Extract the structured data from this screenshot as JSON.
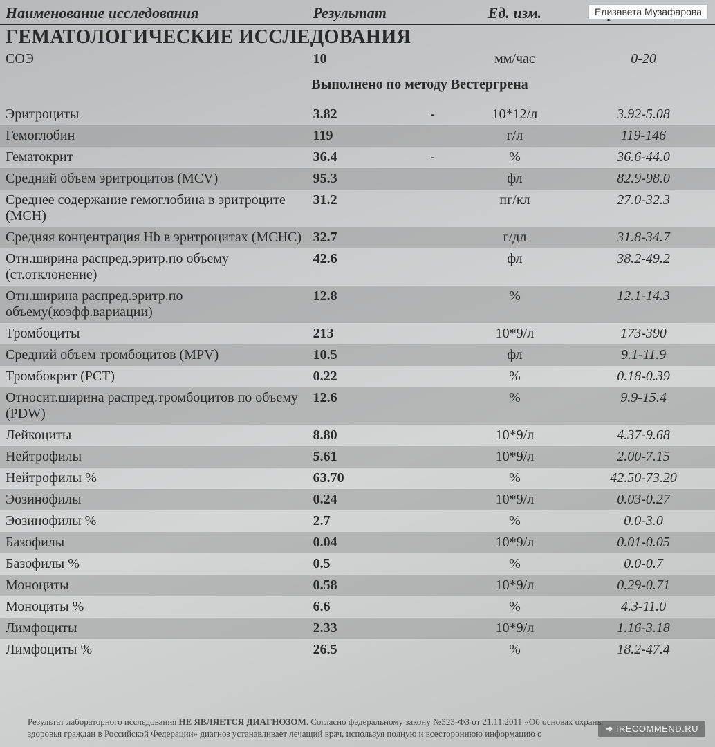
{
  "attribution": "Елизавета Музафарова",
  "watermark": "➜ IRECOMMEND.RU",
  "header": {
    "col_name": "Наименование исследования",
    "col_result": "Результат",
    "col_unit": "Ед. изм.",
    "col_range": "Нормальные зна"
  },
  "section_title": "ГЕМАТОЛОГИЧЕСКИЕ ИССЛЕДОВАНИЯ",
  "soe": {
    "name": "СОЭ",
    "result": "10",
    "unit": "мм/час",
    "range": "0-20"
  },
  "method_note": "Выполнено по методу Вестергрена",
  "rows": [
    {
      "name": "Эритроциты",
      "result": "3.82",
      "flag": "-",
      "unit": "10*12/л",
      "range": "3.92-5.08",
      "shade": false
    },
    {
      "name": "Гемоглобин",
      "result": "119",
      "flag": "",
      "unit": "г/л",
      "range": "119-146",
      "shade": true
    },
    {
      "name": "Гематокрит",
      "result": "36.4",
      "flag": "-",
      "unit": "%",
      "range": "36.6-44.0",
      "shade": false
    },
    {
      "name": "Средний объем эритроцитов (MCV)",
      "result": "95.3",
      "flag": "",
      "unit": "фл",
      "range": "82.9-98.0",
      "shade": true
    },
    {
      "name": "Среднее содержание гемоглобина в эритроците (MCH)",
      "result": "31.2",
      "flag": "",
      "unit": "пг/кл",
      "range": "27.0-32.3",
      "shade": false
    },
    {
      "name": "Средняя концентрация Hb в эритроцитах (MCHC)",
      "result": "32.7",
      "flag": "",
      "unit": "г/дл",
      "range": "31.8-34.7",
      "shade": true
    },
    {
      "name": "Отн.ширина распред.эритр.по объему (ст.отклонение)",
      "result": "42.6",
      "flag": "",
      "unit": "фл",
      "range": "38.2-49.2",
      "shade": false
    },
    {
      "name": "Отн.ширина распред.эритр.по объему(коэфф.вариации)",
      "result": "12.8",
      "flag": "",
      "unit": "%",
      "range": "12.1-14.3",
      "shade": true
    },
    {
      "name": "Тромбоциты",
      "result": "213",
      "flag": "",
      "unit": "10*9/л",
      "range": "173-390",
      "shade": false
    },
    {
      "name": "Средний объем тромбоцитов (MPV)",
      "result": "10.5",
      "flag": "",
      "unit": "фл",
      "range": "9.1-11.9",
      "shade": true
    },
    {
      "name": "Тромбокрит (PCT)",
      "result": "0.22",
      "flag": "",
      "unit": "%",
      "range": "0.18-0.39",
      "shade": false
    },
    {
      "name": "Относит.ширина распред.тромбоцитов по объему (PDW)",
      "result": "12.6",
      "flag": "",
      "unit": "%",
      "range": "9.9-15.4",
      "shade": true
    },
    {
      "name": "Лейкоциты",
      "result": "8.80",
      "flag": "",
      "unit": "10*9/л",
      "range": "4.37-9.68",
      "shade": false
    },
    {
      "name": "Нейтрофилы",
      "result": "5.61",
      "flag": "",
      "unit": "10*9/л",
      "range": "2.00-7.15",
      "shade": true
    },
    {
      "name": "Нейтрофилы %",
      "result": "63.70",
      "flag": "",
      "unit": "%",
      "range": "42.50-73.20",
      "shade": false
    },
    {
      "name": "Эозинофилы",
      "result": "0.24",
      "flag": "",
      "unit": "10*9/л",
      "range": "0.03-0.27",
      "shade": true
    },
    {
      "name": "Эозинофилы %",
      "result": "2.7",
      "flag": "",
      "unit": "%",
      "range": "0.0-3.0",
      "shade": false
    },
    {
      "name": "Базофилы",
      "result": "0.04",
      "flag": "",
      "unit": "10*9/л",
      "range": "0.01-0.05",
      "shade": true
    },
    {
      "name": "Базофилы %",
      "result": "0.5",
      "flag": "",
      "unit": "%",
      "range": "0.0-0.7",
      "shade": false
    },
    {
      "name": "Моноциты",
      "result": "0.58",
      "flag": "",
      "unit": "10*9/л",
      "range": "0.29-0.71",
      "shade": true
    },
    {
      "name": "Моноциты %",
      "result": "6.6",
      "flag": "",
      "unit": "%",
      "range": "4.3-11.0",
      "shade": false
    },
    {
      "name": "Лимфоциты",
      "result": "2.33",
      "flag": "",
      "unit": "10*9/л",
      "range": "1.16-3.18",
      "shade": true
    },
    {
      "name": "Лимфоциты %",
      "result": "26.5",
      "flag": "",
      "unit": "%",
      "range": "18.2-47.4",
      "shade": false
    }
  ],
  "footer": {
    "line1_pre": "Результат лабораторного исследования ",
    "line1_bold": "НЕ ЯВЛЯЕТСЯ ДИАГНОЗОМ",
    "line1_post": ". Согласно федеральному закону №323-ФЗ от 21.11.2011 «Об основах охраны",
    "line2": "здоровья граждан в Российской Федерации» диагноз устанавливает лечащий врач, используя полную и всестороннюю информацию о"
  }
}
